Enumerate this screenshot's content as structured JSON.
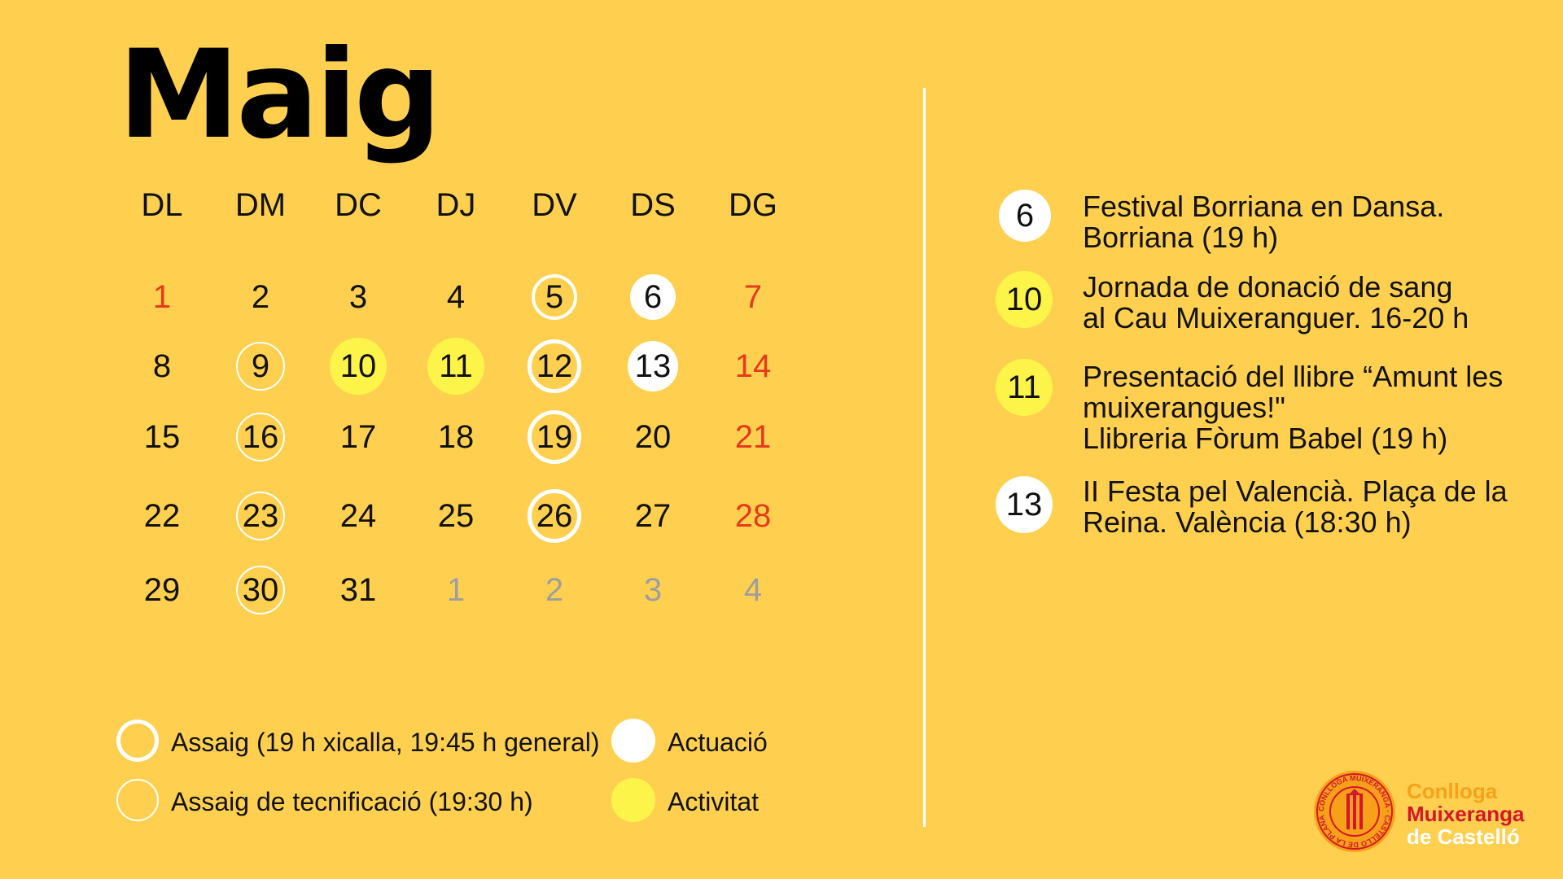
{
  "title": "Maig",
  "weekdays": [
    "DL",
    "DM",
    "DC",
    "DJ",
    "DV",
    "DS",
    "DG"
  ],
  "calendar_rows": [
    [
      {
        "n": "1",
        "type": "sunday"
      },
      {
        "n": "2",
        "type": "plain"
      },
      {
        "n": "3",
        "type": "plain"
      },
      {
        "n": "4",
        "type": "plain"
      },
      {
        "n": "5",
        "type": "assaig"
      },
      {
        "n": "6",
        "type": "actuacio"
      },
      {
        "n": "7",
        "type": "sunday"
      }
    ],
    [
      {
        "n": "8",
        "type": "plain"
      },
      {
        "n": "9",
        "type": "tecnif"
      },
      {
        "n": "10",
        "type": "activitat"
      },
      {
        "n": "11",
        "type": "activitat"
      },
      {
        "n": "12",
        "type": "assaig-big"
      },
      {
        "n": "13",
        "type": "actuacio-big"
      },
      {
        "n": "14",
        "type": "sunday"
      }
    ],
    [
      {
        "n": "15",
        "type": "plain"
      },
      {
        "n": "16",
        "type": "tecnif"
      },
      {
        "n": "17",
        "type": "plain"
      },
      {
        "n": "18",
        "type": "plain"
      },
      {
        "n": "19",
        "type": "assaig-big"
      },
      {
        "n": "20",
        "type": "plain"
      },
      {
        "n": "21",
        "type": "sunday"
      }
    ],
    [
      {
        "n": "22",
        "type": "plain"
      },
      {
        "n": "23",
        "type": "tecnif"
      },
      {
        "n": "24",
        "type": "plain"
      },
      {
        "n": "25",
        "type": "plain"
      },
      {
        "n": "26",
        "type": "assaig-big"
      },
      {
        "n": "27",
        "type": "plain"
      },
      {
        "n": "28",
        "type": "sunday"
      }
    ],
    [
      {
        "n": "29",
        "type": "plain"
      },
      {
        "n": "30",
        "type": "tecnif"
      },
      {
        "n": "31",
        "type": "plain"
      },
      {
        "n": "1",
        "type": "muted"
      },
      {
        "n": "2",
        "type": "muted"
      },
      {
        "n": "3",
        "type": "muted"
      },
      {
        "n": "4",
        "type": "muted"
      }
    ]
  ],
  "events": [
    {
      "day": "6",
      "style": "white",
      "text": "Festival Borriana en Dansa.\nBorriana (19 h)"
    },
    {
      "day": "10",
      "style": "yellow",
      "text": "Jornada de donació de sang\nal Cau Muixeranguer. 16-20 h"
    },
    {
      "day": "11",
      "style": "yellow",
      "text": "Presentació del llibre “Amunt les\nmuixerangues!\"\nLlibreria Fòrum Babel (19 h)"
    },
    {
      "day": "13",
      "style": "white",
      "text": "II Festa pel Valencià. Plaça de la\nReina. València (18:30 h)"
    }
  ],
  "legend": {
    "assaig": "Assaig (19 h xicalla, 19:45 h general)",
    "tecnificacio": "Assaig de tecnificació (19:30 h)",
    "actuacio": "Actuació",
    "activitat": "Activitat"
  },
  "logo": {
    "line1": "Conlloga",
    "line2": "Muixeranga",
    "line3": "de Castelló",
    "seal_text": "CONLLOGA MUIXERANGA · CASTELLÓ DE LA PLANA"
  },
  "colors": {
    "background": "#FFD04F",
    "sunday": "#E53A1C",
    "muted": "#9E9E9E",
    "activitat": "#FDF44A",
    "ring": "#FFFFFF",
    "logo_orange": "#F7A11A",
    "logo_red": "#D4172A"
  }
}
